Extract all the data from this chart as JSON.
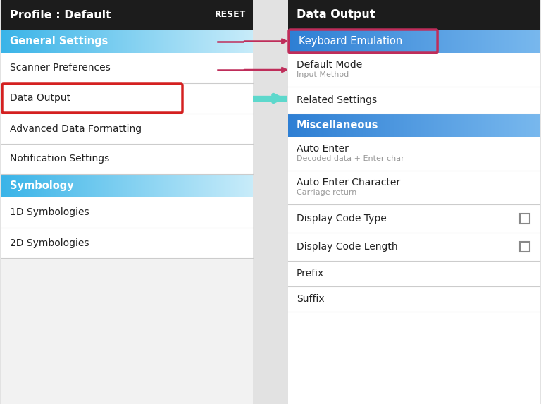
{
  "left_panel": {
    "header_text": "Profile : Default",
    "header_reset": "RESET",
    "header_bg": "#1c1c1c",
    "header_text_color": "#ffffff",
    "section_general": "General Settings",
    "section_general_bg_left": "#3ab4e8",
    "section_general_bg_right": "#c8ecfa",
    "items_general": [
      "Scanner Preferences",
      "Data Output",
      "Advanced Data Formatting",
      "Notification Settings"
    ],
    "section_symbology": "Symbology",
    "section_symbology_bg_left": "#3ab4e8",
    "section_symbology_bg_right": "#c8ecfa",
    "items_symbology": [
      "1D Symbologies",
      "2D Symbologies"
    ],
    "item_text_color": "#222222",
    "divider_color": "#cccccc"
  },
  "right_panel": {
    "header_text": "Data Output",
    "header_bg": "#1c1c1c",
    "header_text_color": "#ffffff",
    "section_misc": "Miscellaneous",
    "section_misc_bg_left": "#2e7fd4",
    "section_misc_bg_right": "#78b8ee",
    "item_keyboard": "Keyboard Emulation",
    "item_keyboard_bg_left": "#2e7fd4",
    "item_keyboard_bg_right": "#78b8ee",
    "item_keyboard_text": "#ffffff",
    "items_top": [
      {
        "main": "Default Mode",
        "sub": "Input Method"
      },
      {
        "main": "Related Settings",
        "sub": ""
      }
    ],
    "items_misc": [
      {
        "main": "Auto Enter",
        "sub": "Decoded data + Enter char",
        "checkbox": false
      },
      {
        "main": "Auto Enter Character",
        "sub": "Carriage return",
        "checkbox": false
      },
      {
        "main": "Display Code Type",
        "sub": "",
        "checkbox": true
      },
      {
        "main": "Display Code Length",
        "sub": "",
        "checkbox": true
      },
      {
        "main": "Prefix",
        "sub": "",
        "checkbox": false
      },
      {
        "main": "Suffix",
        "sub": "",
        "checkbox": false
      }
    ],
    "item_text_color": "#222222",
    "item_sub_color": "#999999",
    "divider_color": "#cccccc"
  },
  "arrow_teal_color": "#5dd8cc",
  "arrow_pink_color": "#bf2d5a",
  "red_box_color": "#d42020",
  "pink_box_color": "#bf2d5a",
  "fig_bg": "#e2e2e2"
}
